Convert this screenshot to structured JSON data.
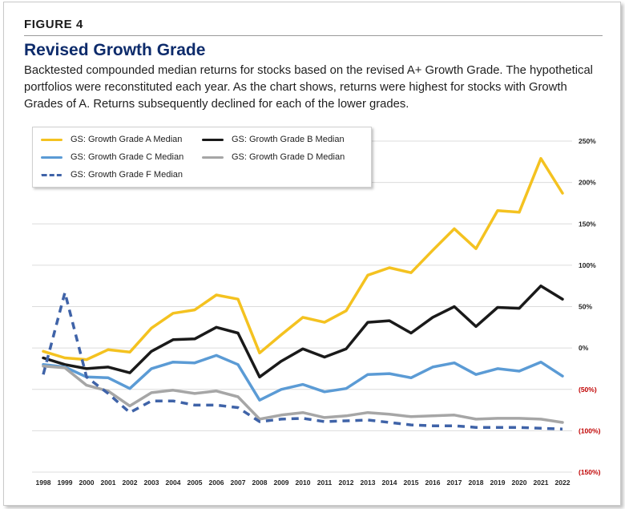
{
  "figure": {
    "label": "FIGURE 4",
    "title": "Revised Growth Grade",
    "subtitle": "Backtested compounded median returns for stocks based on the revised A+ Growth Grade. The hypothetical portfolios were reconstituted each year. As the chart shows, returns were highest for stocks with Growth Grades of A. Returns subsequently declined for each of the lower grades."
  },
  "chart_data": {
    "type": "line",
    "x": [
      "1998",
      "1999",
      "2000",
      "2001",
      "2002",
      "2003",
      "2004",
      "2005",
      "2006",
      "2007",
      "2008",
      "2009",
      "2010",
      "2011",
      "2012",
      "2013",
      "2014",
      "2015",
      "2016",
      "2017",
      "2018",
      "2019",
      "2020",
      "2021",
      "2022"
    ],
    "ylim": [
      -150,
      250
    ],
    "y_ticks": [
      {
        "value": 250,
        "label": "250%"
      },
      {
        "value": 200,
        "label": "200%"
      },
      {
        "value": 150,
        "label": "150%"
      },
      {
        "value": 100,
        "label": "100%"
      },
      {
        "value": 50,
        "label": "50%"
      },
      {
        "value": 0,
        "label": "0%"
      },
      {
        "value": -50,
        "label": "(50%)"
      },
      {
        "value": -100,
        "label": "(100%)"
      },
      {
        "value": -150,
        "label": "(150%)"
      }
    ],
    "y_axis_position": "right",
    "negative_tick_color": "#c00000",
    "grid": true,
    "legend_position": "top-left",
    "series": [
      {
        "name": "GS: Growth Grade A Median",
        "color": "#f4c220",
        "dashed": false,
        "values": [
          -4,
          -12,
          -14,
          -2,
          -5,
          24,
          42,
          46,
          64,
          59,
          -6,
          16,
          37,
          31,
          45,
          88,
          97,
          91,
          118,
          144,
          120,
          166,
          164,
          229,
          187
        ]
      },
      {
        "name": "GS: Growth Grade B Median",
        "color": "#1a1a1a",
        "dashed": false,
        "values": [
          -12,
          -20,
          -25,
          -23,
          -30,
          -4,
          10,
          11,
          25,
          18,
          -35,
          -16,
          -1,
          -11,
          -1,
          31,
          33,
          18,
          37,
          50,
          26,
          49,
          48,
          75,
          59
        ]
      },
      {
        "name": "GS: Growth Grade C Median",
        "color": "#5b9bd5",
        "dashed": false,
        "values": [
          -20,
          -23,
          -35,
          -36,
          -49,
          -25,
          -17,
          -18,
          -9,
          -20,
          -63,
          -50,
          -44,
          -53,
          -49,
          -32,
          -31,
          -36,
          -23,
          -18,
          -32,
          -25,
          -28,
          -17,
          -34
        ]
      },
      {
        "name": "GS: Growth Grade D Median",
        "color": "#a6a6a6",
        "dashed": false,
        "values": [
          -22,
          -24,
          -45,
          -52,
          -70,
          -54,
          -51,
          -55,
          -52,
          -59,
          -86,
          -81,
          -78,
          -84,
          -82,
          -78,
          -80,
          -83,
          -82,
          -81,
          -86,
          -85,
          -85,
          -86,
          -90
        ]
      },
      {
        "name": "GS: Growth Grade F Median",
        "color": "#3f63a8",
        "dashed": true,
        "values": [
          -32,
          67,
          -35,
          -55,
          -78,
          -64,
          -64,
          -69,
          -69,
          -72,
          -89,
          -86,
          -85,
          -89,
          -88,
          -87,
          -90,
          -93,
          -94,
          -94,
          -96,
          -96,
          -96,
          -97,
          -98
        ]
      }
    ]
  }
}
